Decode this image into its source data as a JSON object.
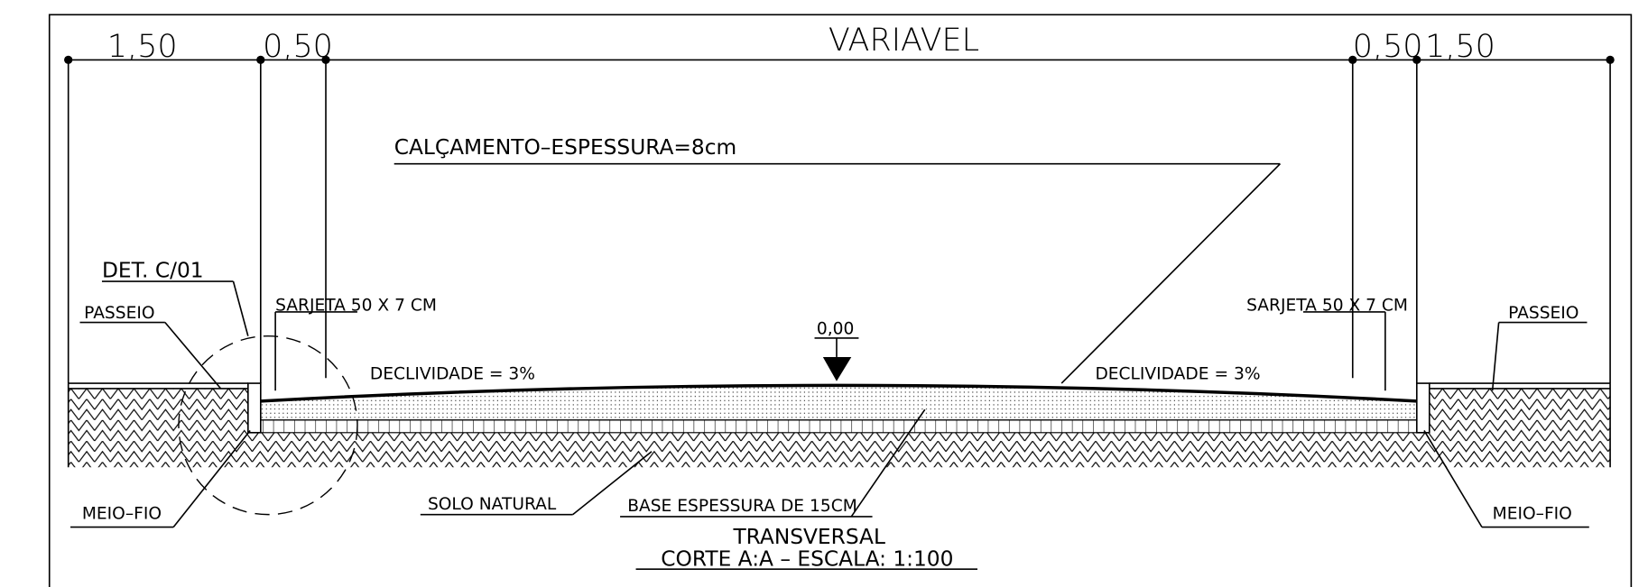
{
  "dimensions": [
    "1,50",
    "0,50",
    "VARIAVEL",
    "0,50",
    "1,50"
  ],
  "labels": {
    "pavement": "CALÇAMENTO–ESPESSURA=8cm",
    "detail": "DET. C/01",
    "sidewalk_left": "PASSEIO",
    "gutter_left": "SARJETA 50 X 7 CM",
    "level": "0,00",
    "slope_left": "DECLIVIDADE = 3%",
    "slope_right": "DECLIVIDADE = 3%",
    "gutter_right": "SARJETA 50 X 7 CM",
    "sidewalk_right": "PASSEIO",
    "curb_left": "MEIO–FIO",
    "soil": "SOLO NATURAL",
    "base": "BASE ESPESSURA DE 15CM",
    "curb_right": "MEIO–FIO"
  },
  "title": {
    "line1": "TRANSVERSAL",
    "line2": "CORTE A:A – ESCALA: 1:100"
  }
}
